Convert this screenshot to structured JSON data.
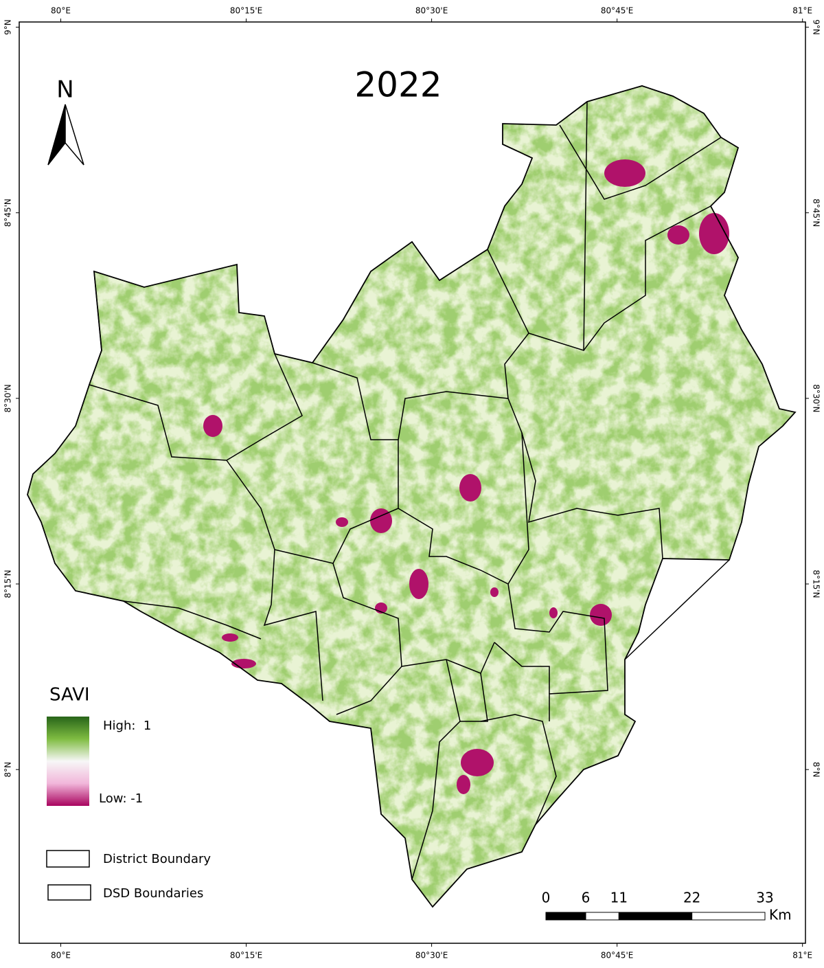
{
  "title": "2022",
  "north_label": "N",
  "graticule": {
    "xlim": [
      79.944,
      81.004
    ],
    "ylim": [
      7.766,
      9.007
    ],
    "lon_ticks": [
      {
        "value": 80,
        "label": "80°E"
      },
      {
        "value": 80.25,
        "label": "80°15'E"
      },
      {
        "value": 80.5,
        "label": "80°30'E"
      },
      {
        "value": 80.75,
        "label": "80°45'E"
      },
      {
        "value": 81,
        "label": "81°E"
      }
    ],
    "lat_ticks": [
      {
        "value": 9,
        "label": "9°N"
      },
      {
        "value": 8.75,
        "label": "8°45'N"
      },
      {
        "value": 8.5,
        "label": "8°30'N"
      },
      {
        "value": 8.25,
        "label": "8°15'N"
      },
      {
        "value": 8,
        "label": "8°N"
      }
    ]
  },
  "legend": {
    "title": "SAVI",
    "high_label": "High:  1",
    "low_label": "Low: -1",
    "items": [
      "District Boundary",
      "DSD Boundaries"
    ]
  },
  "scale_bar": {
    "ticks": [
      0,
      6,
      11,
      22,
      33
    ],
    "unit": "Km"
  }
}
